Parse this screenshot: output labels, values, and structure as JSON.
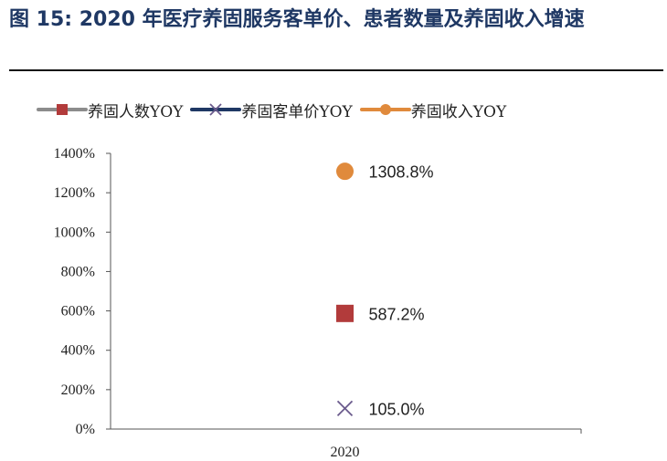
{
  "title": "图 15: 2020 年医疗养固服务客单价、患者数量及养固收入增速",
  "legend": [
    {
      "label": "养固人数YOY",
      "color": "#b23b3b",
      "line": "#8c8c8c",
      "marker": "square",
      "icon": "square-marker-icon"
    },
    {
      "label": "养固客单价YOY",
      "color": "#6a5a8c",
      "line": "#1f3864",
      "marker": "x",
      "icon": "x-marker-icon"
    },
    {
      "label": "养固收入YOY",
      "color": "#e08a3c",
      "line": "#e08a3c",
      "marker": "circle",
      "icon": "circle-marker-icon"
    }
  ],
  "chart_data": {
    "type": "scatter",
    "categories": [
      "2020"
    ],
    "ylim": [
      0,
      1400
    ],
    "yticks": [
      "0%",
      "200%",
      "400%",
      "600%",
      "800%",
      "1000%",
      "1200%",
      "1400%"
    ],
    "series": [
      {
        "name": "养固人数YOY",
        "values": [
          587.2
        ],
        "label": "587.2%"
      },
      {
        "name": "养固客单价YOY",
        "values": [
          105.0
        ],
        "label": "105.0%"
      },
      {
        "name": "养固收入YOY",
        "values": [
          1308.8
        ],
        "label": "1308.8%"
      }
    ]
  }
}
